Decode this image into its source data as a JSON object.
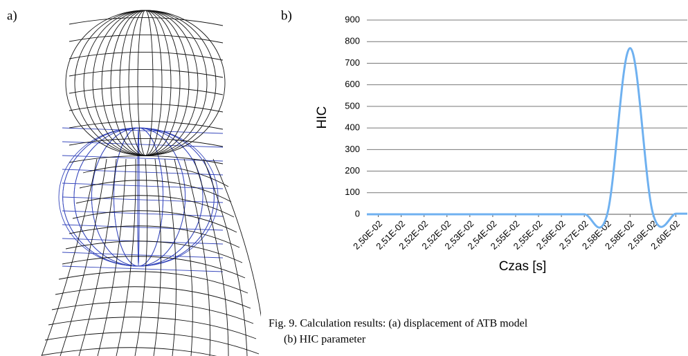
{
  "labels": {
    "a": "a)",
    "b": "b)"
  },
  "caption": {
    "line1": "Fig. 9. Calculation results: (a) displacement of ATB model",
    "line2": "(b) HIC parameter"
  },
  "chart_data": {
    "type": "line",
    "y_label": "HIC",
    "x_label": "Czas [s]",
    "categories": [
      "2,50E-02",
      "2,51E-02",
      "2,52E-02",
      "2,52E-02",
      "2,53E-02",
      "2,54E-02",
      "2,55E-02",
      "2,55E-02",
      "2,56E-02",
      "2,57E-02",
      "2,58E-02",
      "2,58E-02",
      "2,59E-02",
      "2,60E-02"
    ],
    "values": [
      0,
      0,
      0,
      0,
      0,
      0,
      0,
      0,
      0,
      0,
      0,
      770,
      3,
      3
    ],
    "color": "#6fb1f0",
    "ylim": [
      0,
      900
    ],
    "yticks": [
      0,
      100,
      200,
      300,
      400,
      500,
      600,
      700,
      800,
      900
    ],
    "grid": true
  }
}
